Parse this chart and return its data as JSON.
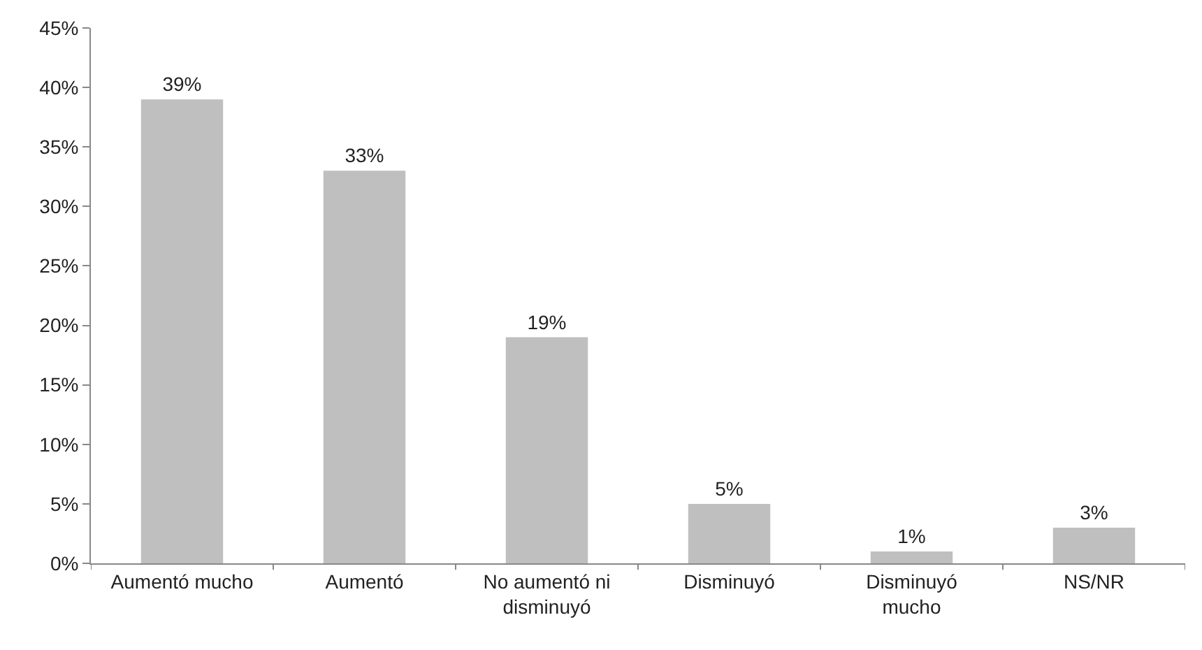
{
  "chart_data": {
    "type": "bar",
    "categories": [
      "Aumentó mucho",
      "Aumentó",
      "No aumentó  ni disminuyó",
      "Disminuyó",
      "Disminuyó mucho",
      "NS/NR"
    ],
    "values": [
      39,
      33,
      19,
      5,
      1,
      3
    ],
    "value_labels": [
      "39%",
      "33%",
      "19%",
      "5%",
      "1%",
      "3%"
    ],
    "color": "#bfbfbf",
    "ylim": [
      0,
      45
    ],
    "yticks": [
      {
        "value": 0,
        "label": "0%"
      },
      {
        "value": 5,
        "label": "5%"
      },
      {
        "value": 10,
        "label": "10%"
      },
      {
        "value": 15,
        "label": "15%"
      },
      {
        "value": 20,
        "label": "20%"
      },
      {
        "value": 25,
        "label": "25%"
      },
      {
        "value": 30,
        "label": "30%"
      },
      {
        "value": 35,
        "label": "35%"
      },
      {
        "value": 40,
        "label": "40%"
      },
      {
        "value": 45,
        "label": "45%"
      }
    ],
    "grid": false
  }
}
